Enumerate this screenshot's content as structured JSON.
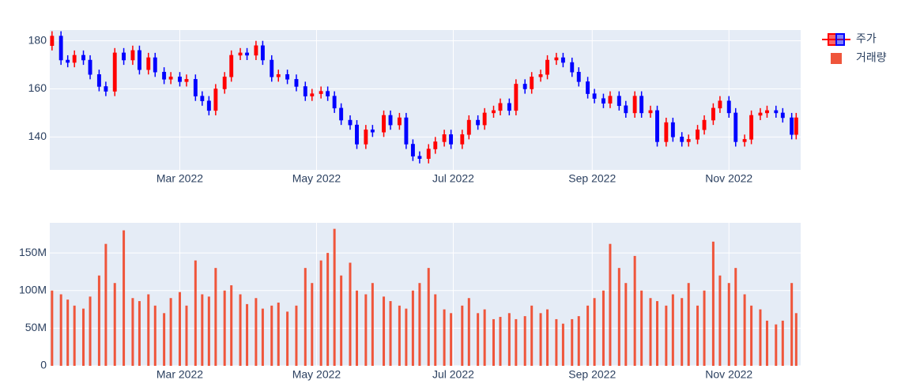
{
  "chart_data": [
    {
      "type": "candlestick",
      "x": [
        0,
        4,
        7,
        10,
        14,
        17,
        21,
        24,
        28,
        32,
        36,
        39,
        43,
        46,
        50,
        53,
        57,
        60,
        64,
        67,
        70,
        73,
        77,
        80,
        84,
        87,
        91,
        94,
        98,
        101,
        105,
        109,
        113,
        116,
        120,
        123,
        126,
        129,
        133,
        136,
        140,
        143,
        148,
        151,
        155,
        158,
        161,
        164,
        168,
        171,
        175,
        178,
        183,
        186,
        190,
        193,
        197,
        200,
        204,
        207,
        211,
        214,
        218,
        221,
        225,
        228,
        232,
        235,
        239,
        242,
        246,
        249,
        253,
        256,
        260,
        263,
        267,
        270,
        274,
        277,
        281,
        284,
        288,
        291,
        295,
        298,
        302,
        305,
        309,
        312,
        316,
        319,
        323,
        326,
        330,
        332
      ],
      "series": [
        {
          "name": "주가",
          "increasing_color": "#ff0000",
          "decreasing_color": "#0000ff",
          "open": [
            178,
            182,
            172,
            171,
            174,
            172,
            166,
            161,
            159,
            175,
            172,
            176,
            168,
            173,
            167,
            164,
            165,
            163,
            164,
            157,
            155,
            151,
            160,
            165,
            174,
            175,
            174,
            178,
            172,
            165,
            166,
            164,
            161,
            157,
            158,
            159,
            157,
            152,
            147,
            145,
            137,
            143,
            142,
            149,
            145,
            148,
            137,
            132,
            131,
            135,
            138,
            141,
            137,
            141,
            147,
            145,
            150,
            151,
            154,
            151,
            162,
            160,
            165,
            166,
            172,
            173,
            171,
            167,
            163,
            158,
            156,
            154,
            157,
            153,
            150,
            157,
            150,
            151,
            138,
            146,
            140,
            138,
            139,
            143,
            147,
            152,
            155,
            150,
            138,
            139,
            149,
            150,
            151,
            150,
            148,
            141
          ],
          "high": [
            184,
            184,
            174,
            176,
            176,
            174,
            168,
            163,
            177,
            177,
            178,
            178,
            175,
            175,
            169,
            167,
            167,
            166,
            166,
            159,
            157,
            162,
            167,
            176,
            177,
            177,
            180,
            180,
            174,
            168,
            168,
            166,
            163,
            160,
            161,
            161,
            159,
            154,
            149,
            147,
            145,
            145,
            151,
            151,
            150,
            150,
            139,
            134,
            137,
            140,
            143,
            143,
            143,
            149,
            149,
            152,
            153,
            156,
            156,
            164,
            164,
            167,
            168,
            174,
            175,
            175,
            173,
            169,
            165,
            160,
            158,
            159,
            159,
            155,
            159,
            159,
            153,
            153,
            148,
            148,
            142,
            141,
            145,
            149,
            154,
            157,
            157,
            152,
            141,
            151,
            152,
            153,
            153,
            152,
            150,
            150
          ],
          "low": [
            176,
            170,
            169,
            169,
            170,
            164,
            159,
            157,
            157,
            170,
            170,
            166,
            166,
            165,
            162,
            162,
            161,
            161,
            155,
            153,
            149,
            149,
            158,
            163,
            172,
            172,
            172,
            170,
            163,
            163,
            162,
            159,
            155,
            155,
            156,
            155,
            150,
            145,
            143,
            135,
            135,
            140,
            140,
            143,
            143,
            135,
            130,
            129,
            129,
            133,
            136,
            135,
            135,
            139,
            143,
            143,
            148,
            149,
            149,
            149,
            158,
            158,
            163,
            164,
            170,
            169,
            165,
            161,
            156,
            154,
            152,
            152,
            151,
            148,
            148,
            148,
            148,
            136,
            136,
            138,
            136,
            136,
            137,
            141,
            145,
            150,
            148,
            136,
            136,
            137,
            147,
            148,
            148,
            146,
            139,
            139
          ],
          "close": [
            182,
            172,
            171,
            174,
            172,
            166,
            161,
            159,
            175,
            172,
            176,
            168,
            173,
            167,
            164,
            165,
            163,
            164,
            157,
            155,
            151,
            160,
            165,
            174,
            175,
            174,
            178,
            172,
            165,
            166,
            164,
            161,
            157,
            158,
            159,
            157,
            152,
            147,
            145,
            137,
            143,
            142,
            149,
            145,
            148,
            137,
            132,
            131,
            135,
            138,
            141,
            137,
            141,
            147,
            145,
            150,
            151,
            154,
            151,
            162,
            160,
            165,
            166,
            172,
            173,
            171,
            167,
            163,
            158,
            156,
            154,
            157,
            153,
            150,
            157,
            150,
            151,
            138,
            146,
            140,
            138,
            139,
            143,
            147,
            152,
            155,
            150,
            138,
            139,
            149,
            150,
            151,
            150,
            148,
            141,
            148
          ]
        }
      ],
      "xlim": [
        -1,
        334
      ],
      "xticks": [
        {
          "value": 57,
          "label": "Mar 2022"
        },
        {
          "value": 118,
          "label": "May 2022"
        },
        {
          "value": 179,
          "label": "Jul 2022"
        },
        {
          "value": 241,
          "label": "Sep 2022"
        },
        {
          "value": 302,
          "label": "Nov 2022"
        }
      ],
      "ylim": [
        126.3,
        184.5
      ],
      "yticks": [
        140,
        160,
        180
      ],
      "grid": true
    },
    {
      "type": "bar",
      "x": [
        0,
        4,
        7,
        10,
        14,
        17,
        21,
        24,
        28,
        32,
        36,
        39,
        43,
        46,
        50,
        53,
        57,
        60,
        64,
        67,
        70,
        73,
        77,
        80,
        84,
        87,
        91,
        94,
        98,
        101,
        105,
        109,
        113,
        116,
        120,
        123,
        126,
        129,
        133,
        136,
        140,
        143,
        148,
        151,
        155,
        158,
        161,
        164,
        168,
        171,
        175,
        178,
        183,
        186,
        190,
        193,
        197,
        200,
        204,
        207,
        211,
        214,
        218,
        221,
        225,
        228,
        232,
        235,
        239,
        242,
        246,
        249,
        253,
        256,
        260,
        263,
        267,
        270,
        274,
        277,
        281,
        284,
        288,
        291,
        295,
        298,
        302,
        305,
        309,
        312,
        316,
        319,
        323,
        326,
        330,
        332
      ],
      "series": [
        {
          "name": "거래량",
          "color": "#ef553b",
          "values": [
            100000000.0,
            95000000.0,
            88000000.0,
            80000000.0,
            76000000.0,
            92000000.0,
            120000000.0,
            162000000.0,
            110000000.0,
            180000000.0,
            90000000.0,
            86000000.0,
            95000000.0,
            80000000.0,
            70000000.0,
            90000000.0,
            98000000.0,
            80000000.0,
            140000000.0,
            95000000.0,
            92000000.0,
            130000000.0,
            100000000.0,
            107000000.0,
            95000000.0,
            82000000.0,
            90000000.0,
            76000000.0,
            80000000.0,
            84000000.0,
            72000000.0,
            80000000.0,
            130000000.0,
            110000000.0,
            140000000.0,
            150000000.0,
            182000000.0,
            120000000.0,
            137000000.0,
            100000000.0,
            95000000.0,
            110000000.0,
            92000000.0,
            86000000.0,
            80000000.0,
            76000000.0,
            100000000.0,
            110000000.0,
            130000000.0,
            95000000.0,
            75000000.0,
            70000000.0,
            80000000.0,
            90000000.0,
            70000000.0,
            75000000.0,
            62000000.0,
            65000000.0,
            70000000.0,
            62000000.0,
            66000000.0,
            80000000.0,
            70000000.0,
            75000000.0,
            62000000.0,
            56000000.0,
            62000000.0,
            66000000.0,
            80000000.0,
            90000000.0,
            100000000.0,
            162000000.0,
            130000000.0,
            110000000.0,
            146000000.0,
            100000000.0,
            90000000.0,
            86000000.0,
            80000000.0,
            95000000.0,
            90000000.0,
            110000000.0,
            80000000.0,
            100000000.0,
            165000000.0,
            120000000.0,
            110000000.0,
            130000000.0,
            95000000.0,
            80000000.0,
            75000000.0,
            60000000.0,
            55000000.0,
            60000000.0,
            110000000.0,
            70000000.0
          ]
        }
      ],
      "xlim": [
        -1,
        334
      ],
      "xticks": [
        {
          "value": 57,
          "label": "Mar 2022"
        },
        {
          "value": 118,
          "label": "May 2022"
        },
        {
          "value": 179,
          "label": "Jul 2022"
        },
        {
          "value": 241,
          "label": "Sep 2022"
        },
        {
          "value": 302,
          "label": "Nov 2022"
        }
      ],
      "ylim": [
        0,
        190000000.0
      ],
      "yticks": [
        0,
        {
          "value": 50000000,
          "label": "50M"
        },
        {
          "value": 100000000,
          "label": "100M"
        },
        {
          "value": 150000000,
          "label": "150M"
        }
      ],
      "grid": true
    }
  ]
}
